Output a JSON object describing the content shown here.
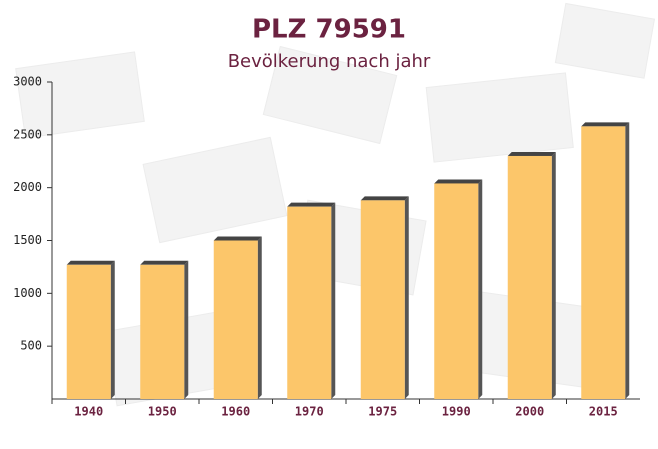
{
  "chart_data": {
    "type": "bar",
    "title": "PLZ 79591",
    "subtitle": "Bevölkerung nach jahr",
    "categories": [
      "1940",
      "1950",
      "1960",
      "1970",
      "1975",
      "1990",
      "2000",
      "2015"
    ],
    "values": [
      1270,
      1270,
      1500,
      1820,
      1880,
      2040,
      2300,
      2580
    ],
    "color": "#fcc66a",
    "ylim": [
      0,
      3000
    ],
    "yticks": [
      500,
      1000,
      1500,
      2000,
      2500,
      3000
    ]
  }
}
